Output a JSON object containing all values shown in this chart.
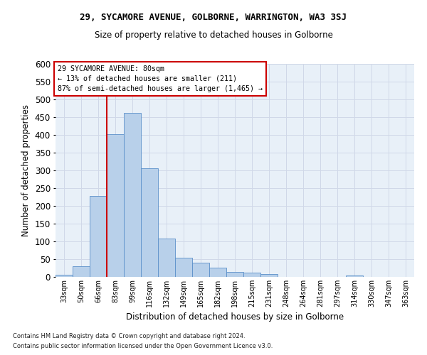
{
  "title1": "29, SYCAMORE AVENUE, GOLBORNE, WARRINGTON, WA3 3SJ",
  "title2": "Size of property relative to detached houses in Golborne",
  "xlabel": "Distribution of detached houses by size in Golborne",
  "ylabel": "Number of detached properties",
  "footer1": "Contains HM Land Registry data © Crown copyright and database right 2024.",
  "footer2": "Contains public sector information licensed under the Open Government Licence v3.0.",
  "annotation_line1": "29 SYCAMORE AVENUE: 80sqm",
  "annotation_line2": "← 13% of detached houses are smaller (211)",
  "annotation_line3": "87% of semi-detached houses are larger (1,465) →",
  "bar_categories": [
    "33sqm",
    "50sqm",
    "66sqm",
    "83sqm",
    "99sqm",
    "116sqm",
    "132sqm",
    "149sqm",
    "165sqm",
    "182sqm",
    "198sqm",
    "215sqm",
    "231sqm",
    "248sqm",
    "264sqm",
    "281sqm",
    "297sqm",
    "314sqm",
    "330sqm",
    "347sqm",
    "363sqm"
  ],
  "bar_values": [
    7,
    30,
    228,
    402,
    463,
    307,
    108,
    55,
    40,
    27,
    15,
    12,
    8,
    0,
    0,
    0,
    0,
    5,
    0,
    0,
    0
  ],
  "bar_color": "#b8d0ea",
  "bar_edge_color": "#5b8fc9",
  "grid_color": "#d0d8e8",
  "bg_color": "#e8f0f8",
  "vline_color": "#cc0000",
  "vline_x_index": 2.5,
  "annotation_box_color": "#cc0000",
  "ylim": [
    0,
    600
  ],
  "yticks": [
    0,
    50,
    100,
    150,
    200,
    250,
    300,
    350,
    400,
    450,
    500,
    550,
    600
  ],
  "figsize": [
    6.0,
    5.0
  ],
  "dpi": 100
}
